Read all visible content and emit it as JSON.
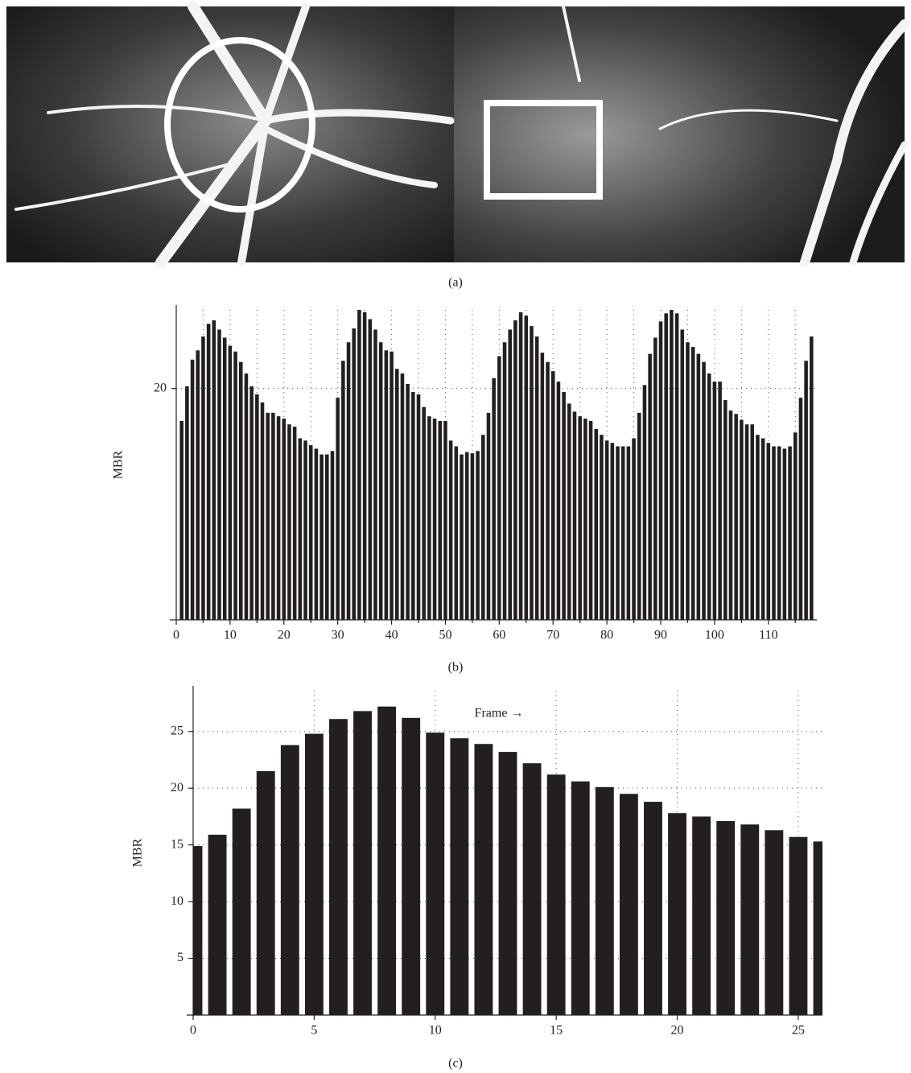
{
  "captions": [
    "(a)",
    "(b)",
    "(c)"
  ],
  "chart_data": [
    {
      "type": "bar",
      "ylabel": "MBR",
      "color": "#231f20",
      "x": [
        1,
        2,
        3,
        4,
        5,
        6,
        7,
        8,
        9,
        10,
        11,
        12,
        13,
        14,
        15,
        16,
        17,
        18,
        19,
        20,
        21,
        22,
        23,
        24,
        25,
        26,
        27,
        28,
        29,
        30,
        31,
        32,
        33,
        34,
        35,
        36,
        37,
        38,
        39,
        40,
        41,
        42,
        43,
        44,
        45,
        46,
        47,
        48,
        49,
        50,
        51,
        52,
        53,
        54,
        55,
        56,
        57,
        58,
        59,
        60,
        61,
        62,
        63,
        64,
        65,
        66,
        67,
        68,
        69,
        70,
        71,
        72,
        73,
        74,
        75,
        76,
        77,
        78,
        79,
        80,
        81,
        82,
        83,
        84,
        85,
        86,
        87,
        88,
        89,
        90,
        91,
        92,
        93,
        94,
        95,
        96,
        97,
        98,
        99,
        100,
        101,
        102,
        103,
        104,
        105,
        106,
        107,
        108,
        109,
        110,
        111,
        112,
        113,
        114,
        115,
        116,
        117,
        118
      ],
      "values": [
        17.2,
        20.2,
        22.5,
        23.3,
        24.5,
        25.6,
        25.9,
        25.1,
        24.4,
        23.7,
        23.2,
        22.3,
        21.3,
        20.2,
        19.5,
        18.8,
        17.9,
        17.9,
        17.6,
        17.4,
        16.9,
        16.7,
        15.7,
        15.5,
        15.1,
        14.8,
        14.3,
        14.3,
        14.6,
        19.2,
        22.4,
        24.0,
        25.2,
        26.8,
        26.6,
        26.0,
        25.1,
        24.0,
        23.3,
        23.2,
        21.7,
        21.3,
        20.4,
        19.7,
        19.5,
        18.4,
        17.6,
        17.4,
        17.2,
        17.2,
        15.5,
        15.0,
        14.3,
        14.5,
        14.4,
        14.6,
        16.0,
        17.9,
        20.9,
        22.8,
        24.0,
        25.1,
        25.9,
        26.6,
        26.3,
        25.4,
        24.5,
        23.1,
        22.3,
        21.5,
        20.6,
        19.7,
        18.7,
        18.0,
        17.6,
        17.4,
        17.2,
        16.5,
        16.0,
        15.5,
        15.3,
        15.0,
        15.0,
        15.0,
        15.7,
        17.9,
        20.3,
        23.0,
        24.4,
        25.8,
        26.5,
        26.8,
        26.5,
        25.1,
        24.0,
        23.6,
        23.0,
        22.3,
        21.3,
        20.6,
        20.6,
        19.0,
        18.1,
        17.8,
        17.3,
        16.9,
        16.9,
        16.0,
        15.7,
        15.3,
        15.0,
        15.0,
        14.8,
        15.0,
        16.2,
        19.2,
        22.4,
        24.5
      ],
      "xlim": [
        0,
        119
      ],
      "xticks": [
        0,
        10,
        20,
        30,
        40,
        50,
        60,
        70,
        80,
        90,
        100,
        110
      ],
      "minor_xticks": [
        5,
        15,
        25,
        35,
        45,
        55,
        65,
        75,
        85,
        95,
        105,
        115
      ],
      "ylim": [
        0,
        26.8
      ],
      "yticks": [
        20
      ],
      "grid": true
    },
    {
      "type": "bar",
      "ylabel": "MBR",
      "annotation": "Frame →",
      "color": "#231f20",
      "x": [
        0,
        1,
        2,
        3,
        4,
        5,
        6,
        7,
        8,
        9,
        10,
        11,
        12,
        13,
        14,
        15,
        16,
        17,
        18,
        19,
        20,
        21,
        22,
        23,
        24,
        25,
        26
      ],
      "values": [
        14.9,
        15.9,
        18.2,
        21.5,
        23.8,
        24.8,
        26.1,
        26.8,
        27.2,
        26.2,
        24.9,
        24.4,
        23.9,
        23.2,
        22.2,
        21.2,
        20.6,
        20.1,
        19.5,
        18.8,
        17.8,
        17.5,
        17.1,
        16.8,
        16.3,
        15.7,
        15.3
      ],
      "xlim": [
        0,
        26
      ],
      "xticks": [
        0,
        5,
        10,
        15,
        20,
        25
      ],
      "ylim": [
        0,
        28.6
      ],
      "yticks": [
        5,
        10,
        15,
        20,
        25
      ],
      "grid": true
    }
  ]
}
